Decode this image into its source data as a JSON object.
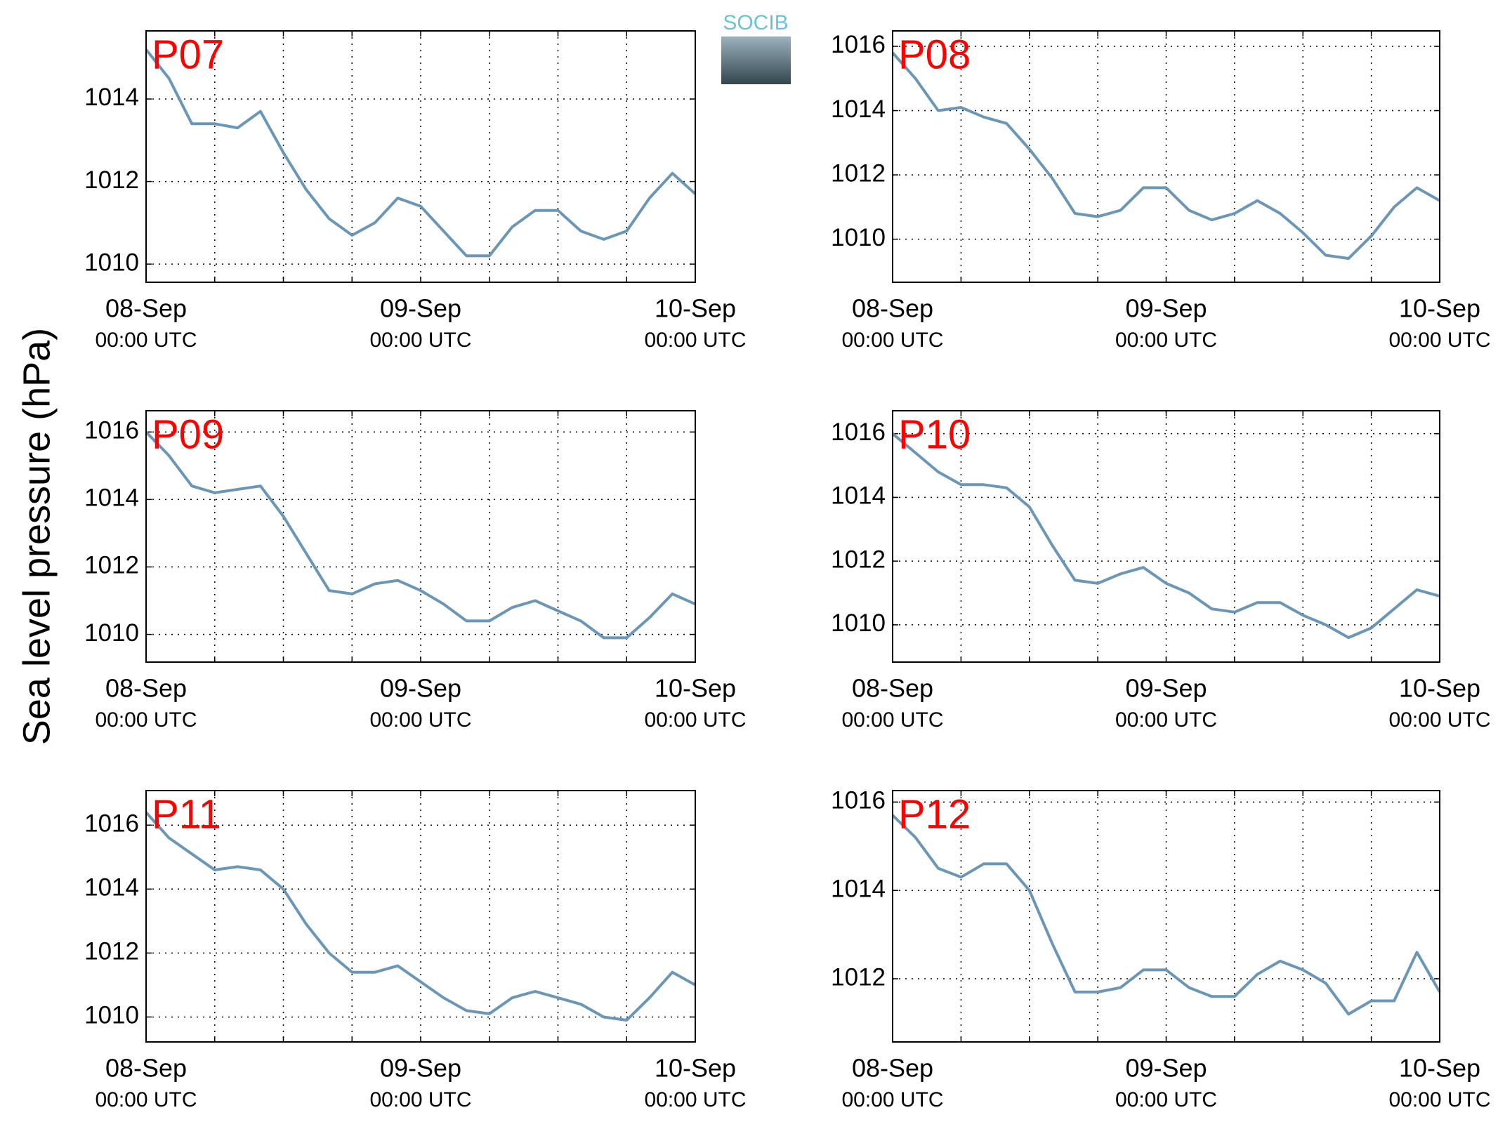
{
  "ylabel": "Sea level pressure (hPa)",
  "logo": "SOCIB",
  "chart_data": [
    {
      "type": "line",
      "title": "P07",
      "series": [
        {
          "name": null,
          "color": "#6a96b8",
          "values": [
            1015.2,
            1014.5,
            1013.4,
            1013.4,
            1013.3,
            1013.7,
            1012.7,
            1011.8,
            1011.1,
            1010.7,
            1011.0,
            1011.6,
            1011.4,
            1010.8,
            1010.2,
            1010.2,
            1010.9,
            1011.3,
            1011.3,
            1010.8,
            1010.6,
            1010.8,
            1011.6,
            1012.2,
            1011.7
          ]
        }
      ],
      "x": [
        "08-Sep 00:00",
        "08-Sep 02:00",
        "08-Sep 04:00",
        "08-Sep 06:00",
        "08-Sep 08:00",
        "08-Sep 10:00",
        "08-Sep 12:00",
        "08-Sep 14:00",
        "08-Sep 16:00",
        "08-Sep 18:00",
        "08-Sep 20:00",
        "08-Sep 22:00",
        "09-Sep 00:00",
        "09-Sep 02:00",
        "09-Sep 04:00",
        "09-Sep 06:00",
        "09-Sep 08:00",
        "09-Sep 10:00",
        "09-Sep 12:00",
        "09-Sep 14:00",
        "09-Sep 16:00",
        "09-Sep 18:00",
        "09-Sep 20:00",
        "09-Sep 22:00",
        "10-Sep 00:00"
      ],
      "xlim": [
        "08-Sep 00:00",
        "10-Sep 00:00"
      ],
      "xticks": [
        {
          "value": "08-Sep 00:00",
          "label": [
            "08-Sep",
            "00:00 UTC"
          ]
        },
        {
          "value": "08-Sep 06:00",
          "label": null
        },
        {
          "value": "08-Sep 12:00",
          "label": null
        },
        {
          "value": "08-Sep 18:00",
          "label": null
        },
        {
          "value": "09-Sep 00:00",
          "label": [
            "09-Sep",
            "00:00 UTC"
          ]
        },
        {
          "value": "09-Sep 06:00",
          "label": null
        },
        {
          "value": "09-Sep 12:00",
          "label": null
        },
        {
          "value": "09-Sep 18:00",
          "label": null
        },
        {
          "value": "10-Sep 00:00",
          "label": [
            "10-Sep",
            "00:00 UTC"
          ]
        }
      ],
      "ylim": [
        1009.56,
        1015.65
      ],
      "yticks": [
        1010,
        1012,
        1014
      ],
      "grid": true
    },
    {
      "type": "line",
      "title": "P08",
      "series": [
        {
          "name": null,
          "color": "#6a96b8",
          "values": [
            1015.8,
            1015.0,
            1014.0,
            1014.1,
            1013.8,
            1013.6,
            1012.8,
            1011.9,
            1010.8,
            1010.7,
            1010.9,
            1011.6,
            1011.6,
            1010.9,
            1010.6,
            1010.8,
            1011.2,
            1010.8,
            1010.2,
            1009.5,
            1009.4,
            1010.1,
            1011.0,
            1011.6,
            1011.2
          ]
        }
      ],
      "x": [
        "08-Sep 00:00",
        "08-Sep 02:00",
        "08-Sep 04:00",
        "08-Sep 06:00",
        "08-Sep 08:00",
        "08-Sep 10:00",
        "08-Sep 12:00",
        "08-Sep 14:00",
        "08-Sep 16:00",
        "08-Sep 18:00",
        "08-Sep 20:00",
        "08-Sep 22:00",
        "09-Sep 00:00",
        "09-Sep 02:00",
        "09-Sep 04:00",
        "09-Sep 06:00",
        "09-Sep 08:00",
        "09-Sep 10:00",
        "09-Sep 12:00",
        "09-Sep 14:00",
        "09-Sep 16:00",
        "09-Sep 18:00",
        "09-Sep 20:00",
        "09-Sep 22:00",
        "10-Sep 00:00"
      ],
      "xlim": [
        "08-Sep 00:00",
        "10-Sep 00:00"
      ],
      "xticks": [
        {
          "value": "08-Sep 00:00",
          "label": [
            "08-Sep",
            "00:00 UTC"
          ]
        },
        {
          "value": "08-Sep 06:00",
          "label": null
        },
        {
          "value": "08-Sep 12:00",
          "label": null
        },
        {
          "value": "08-Sep 18:00",
          "label": null
        },
        {
          "value": "09-Sep 00:00",
          "label": [
            "09-Sep",
            "00:00 UTC"
          ]
        },
        {
          "value": "09-Sep 06:00",
          "label": null
        },
        {
          "value": "09-Sep 12:00",
          "label": null
        },
        {
          "value": "09-Sep 18:00",
          "label": null
        },
        {
          "value": "10-Sep 00:00",
          "label": [
            "10-Sep",
            "00:00 UTC"
          ]
        }
      ],
      "ylim": [
        1008.66,
        1016.48
      ],
      "yticks": [
        1010,
        1012,
        1014,
        1016
      ],
      "grid": true
    },
    {
      "type": "line",
      "title": "P09",
      "series": [
        {
          "name": null,
          "color": "#6a96b8",
          "values": [
            1016.0,
            1015.3,
            1014.4,
            1014.2,
            1014.3,
            1014.4,
            1013.5,
            1012.4,
            1011.3,
            1011.2,
            1011.5,
            1011.6,
            1011.3,
            1010.9,
            1010.4,
            1010.4,
            1010.8,
            1011.0,
            1010.7,
            1010.4,
            1009.9,
            1009.9,
            1010.5,
            1011.2,
            1010.9
          ]
        }
      ],
      "x": [
        "08-Sep 00:00",
        "08-Sep 02:00",
        "08-Sep 04:00",
        "08-Sep 06:00",
        "08-Sep 08:00",
        "08-Sep 10:00",
        "08-Sep 12:00",
        "08-Sep 14:00",
        "08-Sep 16:00",
        "08-Sep 18:00",
        "08-Sep 20:00",
        "08-Sep 22:00",
        "09-Sep 00:00",
        "09-Sep 02:00",
        "09-Sep 04:00",
        "09-Sep 06:00",
        "09-Sep 08:00",
        "09-Sep 10:00",
        "09-Sep 12:00",
        "09-Sep 14:00",
        "09-Sep 16:00",
        "09-Sep 18:00",
        "09-Sep 20:00",
        "09-Sep 22:00",
        "10-Sep 00:00"
      ],
      "xlim": [
        "08-Sep 00:00",
        "10-Sep 00:00"
      ],
      "xticks": [
        {
          "value": "08-Sep 00:00",
          "label": [
            "08-Sep",
            "00:00 UTC"
          ]
        },
        {
          "value": "08-Sep 06:00",
          "label": null
        },
        {
          "value": "08-Sep 12:00",
          "label": null
        },
        {
          "value": "08-Sep 18:00",
          "label": null
        },
        {
          "value": "09-Sep 00:00",
          "label": [
            "09-Sep",
            "00:00 UTC"
          ]
        },
        {
          "value": "09-Sep 06:00",
          "label": null
        },
        {
          "value": "09-Sep 12:00",
          "label": null
        },
        {
          "value": "09-Sep 18:00",
          "label": null
        },
        {
          "value": "10-Sep 00:00",
          "label": [
            "10-Sep",
            "00:00 UTC"
          ]
        }
      ],
      "ylim": [
        1009.18,
        1016.63
      ],
      "yticks": [
        1010,
        1012,
        1014,
        1016
      ],
      "grid": true
    },
    {
      "type": "line",
      "title": "P10",
      "series": [
        {
          "name": null,
          "color": "#6a96b8",
          "values": [
            1016.0,
            1015.4,
            1014.8,
            1014.4,
            1014.4,
            1014.3,
            1013.7,
            1012.5,
            1011.4,
            1011.3,
            1011.6,
            1011.8,
            1011.3,
            1011.0,
            1010.5,
            1010.4,
            1010.7,
            1010.7,
            1010.3,
            1010.0,
            1009.6,
            1009.9,
            1010.5,
            1011.1,
            1010.9
          ]
        }
      ],
      "x": [
        "08-Sep 00:00",
        "08-Sep 02:00",
        "08-Sep 04:00",
        "08-Sep 06:00",
        "08-Sep 08:00",
        "08-Sep 10:00",
        "08-Sep 12:00",
        "08-Sep 14:00",
        "08-Sep 16:00",
        "08-Sep 18:00",
        "08-Sep 20:00",
        "08-Sep 22:00",
        "09-Sep 00:00",
        "09-Sep 02:00",
        "09-Sep 04:00",
        "09-Sep 06:00",
        "09-Sep 08:00",
        "09-Sep 10:00",
        "09-Sep 12:00",
        "09-Sep 14:00",
        "09-Sep 16:00",
        "09-Sep 18:00",
        "09-Sep 20:00",
        "09-Sep 22:00",
        "10-Sep 00:00"
      ],
      "xlim": [
        "08-Sep 00:00",
        "10-Sep 00:00"
      ],
      "xticks": [
        {
          "value": "08-Sep 00:00",
          "label": [
            "08-Sep",
            "00:00 UTC"
          ]
        },
        {
          "value": "08-Sep 06:00",
          "label": null
        },
        {
          "value": "08-Sep 12:00",
          "label": null
        },
        {
          "value": "08-Sep 18:00",
          "label": null
        },
        {
          "value": "09-Sep 00:00",
          "label": [
            "09-Sep",
            "00:00 UTC"
          ]
        },
        {
          "value": "09-Sep 06:00",
          "label": null
        },
        {
          "value": "09-Sep 12:00",
          "label": null
        },
        {
          "value": "09-Sep 18:00",
          "label": null
        },
        {
          "value": "10-Sep 00:00",
          "label": [
            "10-Sep",
            "00:00 UTC"
          ]
        }
      ],
      "ylim": [
        1008.83,
        1016.72
      ],
      "yticks": [
        1010,
        1012,
        1014,
        1016
      ],
      "grid": true
    },
    {
      "type": "line",
      "title": "P11",
      "series": [
        {
          "name": null,
          "color": "#6a96b8",
          "values": [
            1016.4,
            1015.6,
            1015.1,
            1014.6,
            1014.7,
            1014.6,
            1014.0,
            1012.9,
            1012.0,
            1011.4,
            1011.4,
            1011.6,
            1011.1,
            1010.6,
            1010.2,
            1010.1,
            1010.6,
            1010.8,
            1010.6,
            1010.4,
            1010.0,
            1009.9,
            1010.6,
            1011.4,
            1011.0
          ]
        }
      ],
      "x": [
        "08-Sep 00:00",
        "08-Sep 02:00",
        "08-Sep 04:00",
        "08-Sep 06:00",
        "08-Sep 08:00",
        "08-Sep 10:00",
        "08-Sep 12:00",
        "08-Sep 14:00",
        "08-Sep 16:00",
        "08-Sep 18:00",
        "08-Sep 20:00",
        "08-Sep 22:00",
        "09-Sep 00:00",
        "09-Sep 02:00",
        "09-Sep 04:00",
        "09-Sep 06:00",
        "09-Sep 08:00",
        "09-Sep 10:00",
        "09-Sep 12:00",
        "09-Sep 14:00",
        "09-Sep 16:00",
        "09-Sep 18:00",
        "09-Sep 20:00",
        "09-Sep 22:00",
        "10-Sep 00:00"
      ],
      "xlim": [
        "08-Sep 00:00",
        "10-Sep 00:00"
      ],
      "xticks": [
        {
          "value": "08-Sep 00:00",
          "label": [
            "08-Sep",
            "00:00 UTC"
          ]
        },
        {
          "value": "08-Sep 06:00",
          "label": null
        },
        {
          "value": "08-Sep 12:00",
          "label": null
        },
        {
          "value": "08-Sep 18:00",
          "label": null
        },
        {
          "value": "09-Sep 00:00",
          "label": [
            "09-Sep",
            "00:00 UTC"
          ]
        },
        {
          "value": "09-Sep 06:00",
          "label": null
        },
        {
          "value": "09-Sep 12:00",
          "label": null
        },
        {
          "value": "09-Sep 18:00",
          "label": null
        },
        {
          "value": "10-Sep 00:00",
          "label": [
            "10-Sep",
            "00:00 UTC"
          ]
        }
      ],
      "ylim": [
        1009.22,
        1017.08
      ],
      "yticks": [
        1010,
        1012,
        1014,
        1016
      ],
      "grid": true
    },
    {
      "type": "line",
      "title": "P12",
      "series": [
        {
          "name": null,
          "color": "#6a96b8",
          "values": [
            1015.7,
            1015.2,
            1014.5,
            1014.3,
            1014.6,
            1014.6,
            1014.0,
            1012.8,
            1011.7,
            1011.7,
            1011.8,
            1012.2,
            1012.2,
            1011.8,
            1011.6,
            1011.6,
            1012.1,
            1012.4,
            1012.2,
            1011.9,
            1011.2,
            1011.5,
            1011.5,
            1012.6,
            1011.7
          ]
        }
      ],
      "x": [
        "08-Sep 00:00",
        "08-Sep 02:00",
        "08-Sep 04:00",
        "08-Sep 06:00",
        "08-Sep 08:00",
        "08-Sep 10:00",
        "08-Sep 12:00",
        "08-Sep 14:00",
        "08-Sep 16:00",
        "08-Sep 18:00",
        "08-Sep 20:00",
        "08-Sep 22:00",
        "09-Sep 00:00",
        "09-Sep 02:00",
        "09-Sep 04:00",
        "09-Sep 06:00",
        "09-Sep 08:00",
        "09-Sep 10:00",
        "09-Sep 12:00",
        "09-Sep 14:00",
        "09-Sep 16:00",
        "09-Sep 18:00",
        "09-Sep 20:00",
        "09-Sep 22:00",
        "10-Sep 00:00"
      ],
      "xlim": [
        "08-Sep 00:00",
        "10-Sep 00:00"
      ],
      "xticks": [
        {
          "value": "08-Sep 00:00",
          "label": [
            "08-Sep",
            "00:00 UTC"
          ]
        },
        {
          "value": "08-Sep 06:00",
          "label": null
        },
        {
          "value": "08-Sep 12:00",
          "label": null
        },
        {
          "value": "08-Sep 18:00",
          "label": null
        },
        {
          "value": "09-Sep 00:00",
          "label": [
            "09-Sep",
            "00:00 UTC"
          ]
        },
        {
          "value": "09-Sep 06:00",
          "label": null
        },
        {
          "value": "09-Sep 12:00",
          "label": null
        },
        {
          "value": "09-Sep 18:00",
          "label": null
        },
        {
          "value": "10-Sep 00:00",
          "label": [
            "10-Sep",
            "00:00 UTC"
          ]
        }
      ],
      "ylim": [
        1010.57,
        1016.26
      ],
      "yticks": [
        1012,
        1014,
        1016
      ],
      "grid": true
    }
  ]
}
